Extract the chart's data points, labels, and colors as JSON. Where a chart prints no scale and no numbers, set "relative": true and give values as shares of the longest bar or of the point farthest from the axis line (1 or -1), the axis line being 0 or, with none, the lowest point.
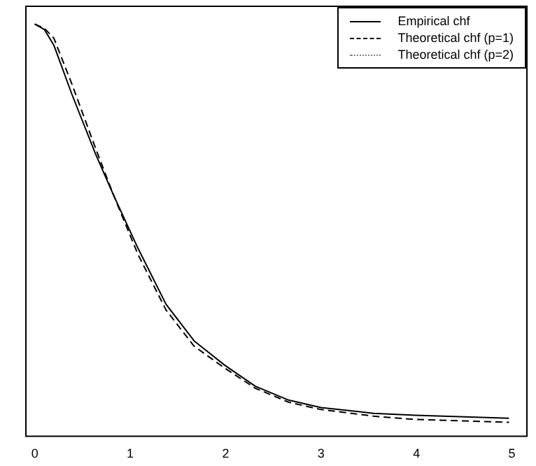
{
  "chart_data": {
    "type": "line",
    "relative": true,
    "grid": false,
    "legend": "top right",
    "marker": "none",
    "tick_labels": "x",
    "x": [
      0,
      0.1,
      0.2,
      0.39,
      0.636,
      0.83,
      1.08,
      1.376,
      1.67,
      1.99,
      2.31,
      2.66,
      3.0,
      3.55,
      3.99,
      4.97
    ],
    "xlim": [
      -0.1,
      5.15
    ],
    "xticks": [
      0,
      1,
      2,
      3,
      4,
      5
    ],
    "series": [
      {
        "name": "Empirical chf",
        "color": "#000000",
        "line_style": "solid",
        "values": [
          1,
          0.987,
          0.949,
          0.829,
          0.685,
          0.582,
          0.456,
          0.319,
          0.23,
          0.171,
          0.12,
          0.086,
          0.068,
          0.054,
          0.049,
          0.042
        ]
      },
      {
        "name": "Theoretical chf (p=1)",
        "color": "#000000",
        "line_style": "dashed",
        "values": [
          1,
          0.99,
          0.966,
          0.854,
          0.699,
          0.582,
          0.441,
          0.305,
          0.217,
          0.164,
          0.115,
          0.081,
          0.063,
          0.047,
          0.039,
          0.032
        ]
      },
      {
        "name": "Theoretical chf (p=2)",
        "color": "#808080",
        "line_style": "dotted",
        "values": [
          null,
          null,
          null,
          null,
          null,
          null,
          null,
          null,
          null,
          null,
          null,
          null,
          null,
          null,
          null,
          null
        ]
      }
    ]
  }
}
